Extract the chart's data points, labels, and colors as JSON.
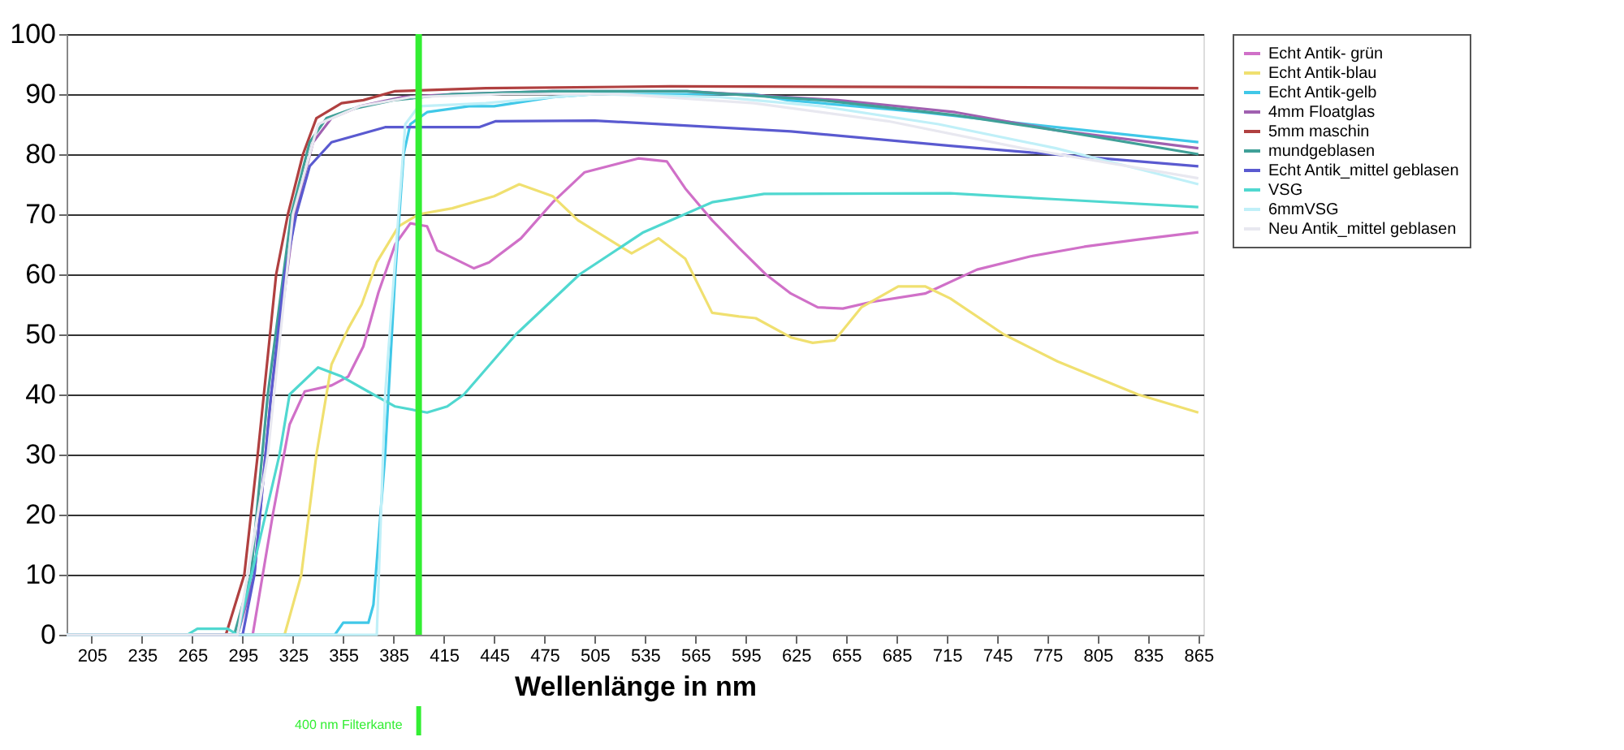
{
  "chart_data": {
    "type": "line",
    "xlabel": "Wellenlänge in nm",
    "xlim": [
      190,
      868
    ],
    "xticks": [
      205,
      235,
      265,
      295,
      325,
      355,
      385,
      415,
      445,
      475,
      505,
      535,
      565,
      595,
      625,
      655,
      685,
      715,
      745,
      775,
      805,
      835,
      865
    ],
    "ylim": [
      0,
      100
    ],
    "yticks": [
      0,
      10,
      20,
      30,
      40,
      50,
      60,
      70,
      80,
      90,
      100
    ],
    "grid": "y",
    "legend": "right",
    "marker": "none",
    "line_style": "solid",
    "ref_lines": [
      {
        "axis": "x",
        "value": 400,
        "label": "400 nm Filterkante",
        "color": "#33ee33"
      }
    ],
    "series": [
      {
        "name": "Echt Antik- grün",
        "color": "#d070c8",
        "x": [
          190,
          301,
          313,
          323,
          332,
          348,
          358,
          367,
          376,
          386,
          395,
          405,
          411,
          433,
          442,
          461,
          480,
          499,
          531,
          548,
          559,
          575,
          591,
          607,
          622,
          638,
          653,
          670,
          702,
          733,
          765,
          797,
          829,
          865
        ],
        "values": [
          0,
          0,
          20,
          35,
          40.5,
          41.5,
          43,
          48,
          57,
          65,
          68.5,
          68,
          64,
          61,
          62,
          66,
          72,
          77,
          79.3,
          78.8,
          74.3,
          69,
          64.4,
          60,
          56.8,
          54.5,
          54.3,
          55.4,
          56.8,
          60.8,
          63,
          64.6,
          65.8,
          67
        ]
      },
      {
        "name": "Echt Antik-blau",
        "color": "#f0e070",
        "x": [
          190,
          320,
          330,
          339,
          348,
          358,
          366,
          375,
          388,
          400,
          420,
          445,
          460,
          480,
          495,
          527,
          543,
          559,
          575,
          591,
          601,
          622,
          635,
          648,
          664,
          686,
          702,
          717,
          749,
          781,
          829,
          865
        ],
        "values": [
          0,
          0,
          10,
          30,
          45,
          51,
          55,
          62,
          68,
          70,
          71,
          73,
          75,
          73,
          69,
          63.5,
          66,
          62.6,
          53.6,
          53,
          52.7,
          49.5,
          48.6,
          49,
          54.5,
          58,
          58,
          56,
          50,
          45.5,
          40,
          37
        ]
      },
      {
        "name": "Echt Antik-gelb",
        "color": "#40c8e8",
        "x": [
          190,
          350,
          355,
          370,
          373,
          380,
          386,
          391,
          395,
          405,
          430,
          445,
          480,
          505,
          540,
          600,
          620,
          700,
          780,
          865
        ],
        "values": [
          0,
          0,
          2,
          2,
          5,
          30,
          60,
          80,
          85,
          87,
          88,
          88,
          89.5,
          90,
          90,
          90,
          89,
          87,
          84.5,
          82
        ]
      },
      {
        "name": "4mm Floatglas",
        "color": "#a060b0",
        "x": [
          190,
          292,
          302,
          312,
          326,
          337,
          348,
          365,
          390,
          420,
          480,
          560,
          650,
          720,
          780,
          865
        ],
        "values": [
          0,
          0,
          10,
          40,
          70,
          82,
          86,
          88,
          89.5,
          90,
          90.5,
          90.5,
          89,
          87,
          84,
          81
        ]
      },
      {
        "name": "5mm maschin",
        "color": "#b04040",
        "x": [
          190,
          285,
          296,
          304,
          315,
          322,
          331,
          339,
          354,
          367,
          386,
          440,
          550,
          700,
          865
        ],
        "values": [
          0,
          0,
          10,
          30,
          60,
          70,
          80,
          86,
          88.5,
          89,
          90.5,
          91,
          91.3,
          91.2,
          91
        ]
      },
      {
        "name": "mundgeblasen",
        "color": "#40a098",
        "x": [
          190,
          290,
          300,
          310,
          324,
          335,
          345,
          360,
          385,
          420,
          480,
          560,
          640,
          720,
          780,
          865
        ],
        "values": [
          0,
          0,
          10,
          40,
          70,
          82,
          86,
          87.5,
          89,
          90,
          90.5,
          90.5,
          89,
          86.5,
          84,
          80
        ]
      },
      {
        "name": "Echt Antik_mittel geblasen",
        "color": "#5a5ad0",
        "x": [
          190,
          295,
          302,
          312,
          320,
          327,
          335,
          348,
          361,
          380,
          436,
          446,
          505,
          622,
          717,
          865
        ],
        "values": [
          0,
          0,
          10,
          40,
          60,
          70,
          78,
          82,
          83,
          84.5,
          84.5,
          85.5,
          85.6,
          83.8,
          81.4,
          78
        ]
      },
      {
        "name": "VSG",
        "color": "#50d8d0",
        "x": [
          190,
          262,
          268,
          286,
          292,
          317,
          323,
          340,
          354,
          373,
          386,
          405,
          417,
          427,
          458,
          496,
          534,
          575,
          606,
          717,
          780,
          865
        ],
        "values": [
          0,
          0,
          1,
          1,
          0,
          30,
          40,
          44.5,
          43,
          40,
          38,
          37,
          38,
          40,
          50,
          60,
          67,
          72,
          73.4,
          73.5,
          72.5,
          71.2
        ]
      },
      {
        "name": "6mmVSG",
        "color": "#c0f0f8",
        "x": [
          190,
          375,
          380,
          392,
          400,
          440,
          480,
          505,
          580,
          640,
          710,
          780,
          830,
          865
        ],
        "values": [
          0,
          0,
          40,
          85,
          88,
          88.5,
          89.5,
          90,
          89.5,
          88,
          85,
          81,
          77.5,
          75
        ]
      },
      {
        "name": "Neu Antik_mittel geblasen",
        "color": "#e8e8f0",
        "x": [
          190,
          292,
          310,
          325,
          340,
          365,
          395,
          450,
          520,
          600,
          680,
          760,
          865
        ],
        "values": [
          0,
          0,
          30,
          70,
          85,
          88,
          89.5,
          90,
          90,
          88.5,
          85.5,
          81,
          76
        ]
      }
    ]
  }
}
